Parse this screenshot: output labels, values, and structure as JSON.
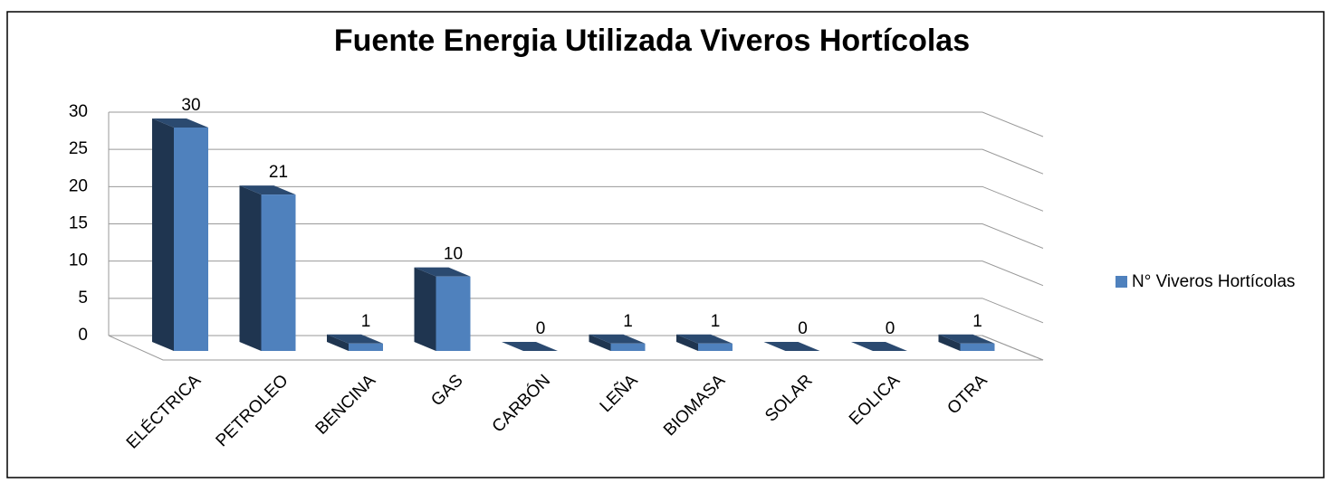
{
  "chart_data": {
    "type": "bar3d",
    "title": "Fuente Energia Utilizada Viveros Hortícolas",
    "categories": [
      "ELÉCTRICA",
      "PETROLEO",
      "BENCINA",
      "GAS",
      "CARBÓN",
      "LEÑA",
      "BIOMASA",
      "SOLAR",
      "EOLICA",
      "OTRA"
    ],
    "series": [
      {
        "name": "N° Viveros Hortícolas",
        "color": "#4f81bd",
        "values": [
          30,
          21,
          1,
          10,
          0,
          1,
          1,
          0,
          0,
          1
        ]
      }
    ],
    "ylim": [
      0,
      30
    ],
    "yticks": [
      0,
      5,
      10,
      15,
      20,
      25,
      30
    ],
    "grid": true,
    "legend": "right",
    "data_labels": true
  }
}
